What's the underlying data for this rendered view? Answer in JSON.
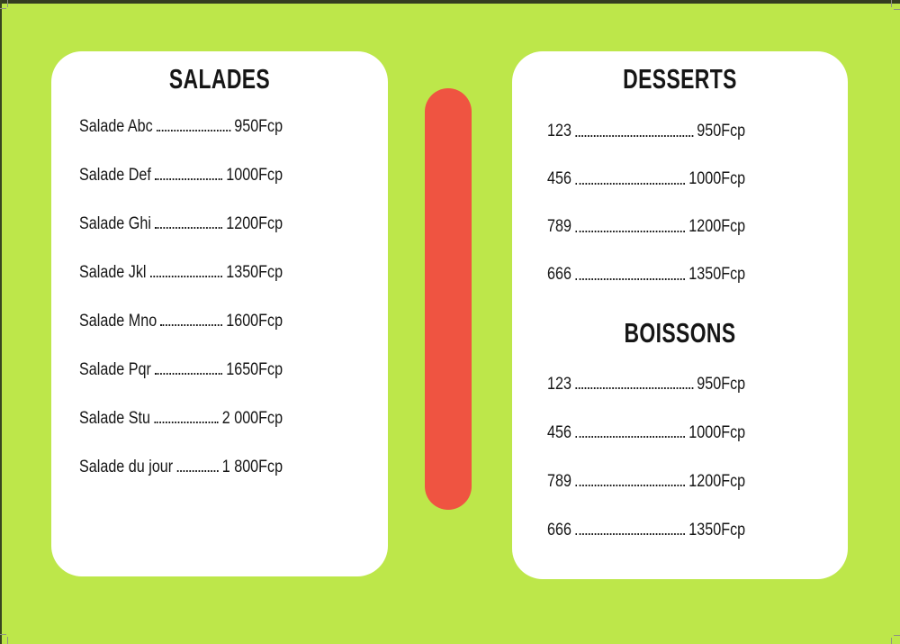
{
  "colors": {
    "background": "#BDE74A",
    "card": "#FFFFFF",
    "divider": "#EF5441",
    "ink": "#161616"
  },
  "salades": {
    "title": "SALADES",
    "items": [
      {
        "name": "Salade Abc",
        "price": "950Fcp"
      },
      {
        "name": "Salade Def",
        "price": "1000Fcp"
      },
      {
        "name": "Salade Ghi",
        "price": "1200Fcp"
      },
      {
        "name": "Salade Jkl",
        "price": "1350Fcp"
      },
      {
        "name": "Salade Mno",
        "price": "1600Fcp"
      },
      {
        "name": "Salade Pqr",
        "price": "1650Fcp"
      },
      {
        "name": "Salade Stu",
        "price": "2 000Fcp"
      },
      {
        "name": "Salade du jour",
        "price": "1 800Fcp"
      }
    ]
  },
  "desserts": {
    "title": "DESSERTS",
    "items": [
      {
        "name": "123",
        "price": "950Fcp"
      },
      {
        "name": "456",
        "price": "1000Fcp"
      },
      {
        "name": "789",
        "price": "1200Fcp"
      },
      {
        "name": "666",
        "price": "1350Fcp"
      }
    ]
  },
  "boissons": {
    "title": "BOISSONS",
    "items": [
      {
        "name": "123",
        "price": "950Fcp"
      },
      {
        "name": "456",
        "price": "1000Fcp"
      },
      {
        "name": "789",
        "price": "1200Fcp"
      },
      {
        "name": "666",
        "price": "1350Fcp"
      }
    ]
  }
}
